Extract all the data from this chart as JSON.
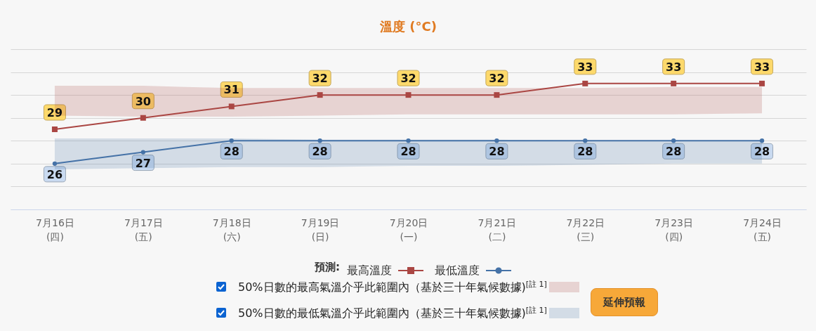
{
  "chart_data": {
    "type": "line",
    "title": "溫度 (°C)",
    "legend_title": "預測:",
    "categories": [
      "7月16日\n(四)",
      "7月17日\n(五)",
      "7月18日\n(六)",
      "7月19日\n(日)",
      "7月20日\n(一)",
      "7月21日\n(二)",
      "7月22日\n(三)",
      "7月23日\n(四)",
      "7月24日\n(五)"
    ],
    "series": [
      {
        "name": "最高溫度",
        "color": "#aa4643",
        "marker": "square",
        "values": [
          29,
          30,
          31,
          32,
          32,
          32,
          33,
          33,
          33
        ],
        "lower": [
          30.2,
          30.1,
          30.1,
          30.2,
          30.3,
          30.3,
          30.3,
          30.3,
          30.4
        ],
        "upper": [
          32.8,
          32.8,
          32.6,
          32.6,
          32.6,
          32.6,
          32.6,
          32.7,
          32.7
        ]
      },
      {
        "name": "最低溫度",
        "color": "#4572a7",
        "marker": "circle",
        "values": [
          26,
          27,
          28,
          28,
          28,
          28,
          28,
          28,
          28
        ],
        "lower": [
          25.5,
          25.6,
          25.7,
          25.7,
          25.8,
          25.8,
          25.9,
          26.0,
          26.0
        ],
        "upper": [
          28.2,
          28.2,
          28.2,
          28.1,
          28.1,
          28.1,
          28.0,
          28.0,
          28.0
        ]
      }
    ],
    "ylim": [
      22,
      36
    ],
    "yticks": [
      22,
      24,
      26,
      28,
      30,
      32,
      34,
      36
    ],
    "tick_labels": "x",
    "grid": "y",
    "legend": "bottom",
    "data_labels": true,
    "line_style": "solid",
    "annotations": [
      "50%日數的最高氣溫介乎此範圍內（基於三十年氣候數據)$^{[註 1]}$",
      "50%日數的最低氣溫介乎此範圍內（基於三十年氣候數據)$^{[註 1]}$",
      "延伸預報"
    ]
  }
}
